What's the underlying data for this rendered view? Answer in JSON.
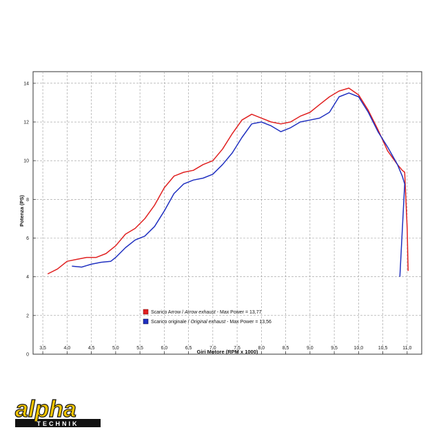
{
  "chart_data": {
    "type": "line",
    "xlabel": "Giri Motore (RPM x 1000)",
    "ylabel": "Potenza (PS)",
    "xlim": [
      3.3,
      11.3
    ],
    "ylim": [
      0,
      14.6
    ],
    "x_ticks": [
      3.5,
      4.0,
      4.5,
      5.0,
      5.5,
      6.0,
      6.5,
      7.0,
      7.5,
      8.0,
      8.5,
      9.0,
      9.5,
      10.0,
      10.5,
      11.0
    ],
    "x_tick_labels": [
      "3,5",
      "4,0",
      "4,5",
      "5,0",
      "5,5",
      "6,0",
      "6,5",
      "7,0",
      "7,5",
      "8,0",
      "8,5",
      "9,0",
      "9,5",
      "10,0",
      "10,5",
      "11,0"
    ],
    "y_ticks": [
      0,
      2,
      4,
      6,
      8,
      10,
      12,
      14
    ],
    "y_tick_labels": [
      "0",
      "2",
      "4",
      "6",
      "8",
      "10",
      "12",
      "14"
    ],
    "grid": "dashed",
    "legend_position": "bottom-left",
    "series": [
      {
        "name_prefix": "Scarico Arrow / ",
        "name_italic": "Arrow exhaust",
        "name_suffix": " - Max Power = 13,77",
        "color": "#e02020",
        "x": [
          3.6,
          3.8,
          4.0,
          4.2,
          4.4,
          4.6,
          4.8,
          5.0,
          5.2,
          5.4,
          5.6,
          5.8,
          6.0,
          6.2,
          6.4,
          6.6,
          6.8,
          7.0,
          7.2,
          7.4,
          7.6,
          7.8,
          8.0,
          8.2,
          8.4,
          8.6,
          8.8,
          9.0,
          9.2,
          9.4,
          9.6,
          9.8,
          10.0,
          10.2,
          10.4,
          10.6,
          10.8,
          10.9,
          10.95,
          11.0,
          11.02
        ],
        "y": [
          4.15,
          4.4,
          4.8,
          4.9,
          5.0,
          5.0,
          5.2,
          5.6,
          6.2,
          6.5,
          7.0,
          7.7,
          8.6,
          9.2,
          9.4,
          9.5,
          9.8,
          10.0,
          10.6,
          11.4,
          12.1,
          12.4,
          12.2,
          12.0,
          11.9,
          12.0,
          12.3,
          12.5,
          12.9,
          13.3,
          13.6,
          13.75,
          13.4,
          12.6,
          11.6,
          10.5,
          9.8,
          9.5,
          9.4,
          6.5,
          4.3
        ]
      },
      {
        "name_prefix": "Scarico originale / ",
        "name_italic": "Original exhaust",
        "name_suffix": " - Max Power = 13,56",
        "color": "#2030c0",
        "x": [
          4.1,
          4.3,
          4.5,
          4.7,
          4.9,
          5.0,
          5.2,
          5.4,
          5.6,
          5.8,
          6.0,
          6.2,
          6.4,
          6.6,
          6.8,
          7.0,
          7.2,
          7.4,
          7.6,
          7.8,
          8.0,
          8.2,
          8.4,
          8.6,
          8.8,
          9.0,
          9.2,
          9.4,
          9.6,
          9.8,
          10.0,
          10.2,
          10.4,
          10.6,
          10.8,
          10.9,
          10.95,
          10.85
        ],
        "y": [
          4.55,
          4.5,
          4.65,
          4.75,
          4.8,
          5.0,
          5.5,
          5.9,
          6.1,
          6.6,
          7.4,
          8.3,
          8.8,
          9.0,
          9.1,
          9.3,
          9.8,
          10.4,
          11.2,
          11.9,
          12.0,
          11.8,
          11.5,
          11.7,
          12.0,
          12.1,
          12.2,
          12.5,
          13.3,
          13.5,
          13.3,
          12.5,
          11.5,
          10.7,
          9.8,
          9.2,
          8.8,
          4.0
        ]
      }
    ]
  },
  "logo": {
    "brand": "alpha",
    "sub": "TECHNIK"
  }
}
